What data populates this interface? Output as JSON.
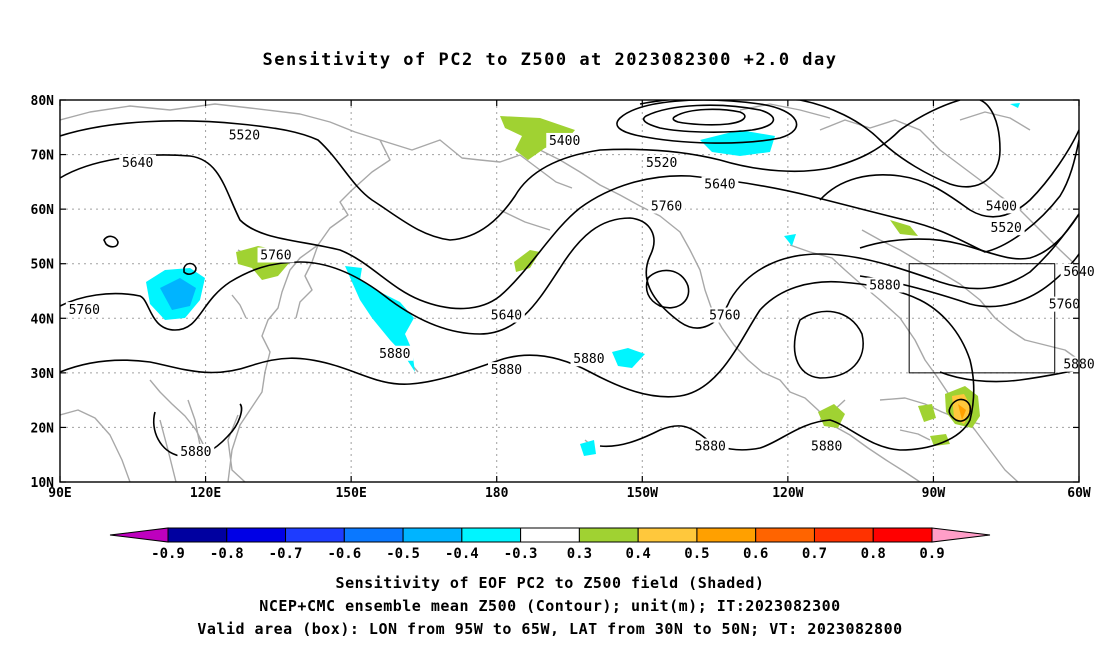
{
  "title": "Sensitivity of PC2 to Z500 at 2023082300 +2.0 day",
  "map": {
    "lon_range_deg_east": [
      90,
      300
    ],
    "lat_range_deg": [
      10,
      80
    ],
    "lat_ticks": [
      {
        "lat": 80,
        "label": "80N"
      },
      {
        "lat": 70,
        "label": "70N"
      },
      {
        "lat": 60,
        "label": "60N"
      },
      {
        "lat": 50,
        "label": "50N"
      },
      {
        "lat": 40,
        "label": "40N"
      },
      {
        "lat": 30,
        "label": "30N"
      },
      {
        "lat": 20,
        "label": "20N"
      },
      {
        "lat": 10,
        "label": "10N"
      }
    ],
    "lon_ticks": [
      {
        "lon": 90,
        "label": "90E"
      },
      {
        "lon": 120,
        "label": "120E"
      },
      {
        "lon": 150,
        "label": "150E"
      },
      {
        "lon": 180,
        "label": "180"
      },
      {
        "lon": 210,
        "label": "150W"
      },
      {
        "lon": 240,
        "label": "120W"
      },
      {
        "lon": 270,
        "label": "90W"
      },
      {
        "lon": 300,
        "label": "60W"
      }
    ],
    "grid_lons": [
      120,
      150,
      180,
      210,
      240,
      270,
      300
    ],
    "grid_lats": [
      20,
      30,
      40,
      50,
      60,
      70
    ],
    "valid_box": {
      "lon_west": 265,
      "lon_east": 295,
      "lat_south": 30,
      "lat_north": 50
    },
    "contour_labels": [
      {
        "text": "5520",
        "lon": 128,
        "lat": 73.5
      },
      {
        "text": "5640",
        "lon": 106,
        "lat": 68.5
      },
      {
        "text": "5400",
        "lon": 194,
        "lat": 72.5
      },
      {
        "text": "5520",
        "lon": 214,
        "lat": 68.5
      },
      {
        "text": "5640",
        "lon": 226,
        "lat": 64.5
      },
      {
        "text": "5760",
        "lon": 215,
        "lat": 60.5
      },
      {
        "text": "5400",
        "lon": 284,
        "lat": 60.5
      },
      {
        "text": "5520",
        "lon": 285,
        "lat": 56.5
      },
      {
        "text": "5640",
        "lon": 300,
        "lat": 48.5
      },
      {
        "text": "5760",
        "lon": 134.5,
        "lat": 51.5
      },
      {
        "text": "5760",
        "lon": 95,
        "lat": 41.5
      },
      {
        "text": "5640",
        "lon": 182,
        "lat": 40.5
      },
      {
        "text": "5760",
        "lon": 227,
        "lat": 40.5
      },
      {
        "text": "5880",
        "lon": 260,
        "lat": 46
      },
      {
        "text": "5760",
        "lon": 297,
        "lat": 42.5
      },
      {
        "text": "5880",
        "lon": 159,
        "lat": 33.5
      },
      {
        "text": "5880",
        "lon": 182,
        "lat": 30.5
      },
      {
        "text": "5880",
        "lon": 199,
        "lat": 32.5
      },
      {
        "text": "5880",
        "lon": 300,
        "lat": 31.5
      },
      {
        "text": "5880",
        "lon": 224,
        "lat": 16.5
      },
      {
        "text": "5880",
        "lon": 248,
        "lat": 16.5
      },
      {
        "text": "5880",
        "lon": 118,
        "lat": 15.5
      }
    ]
  },
  "colorbar": {
    "labels": [
      "-0.9",
      "-0.8",
      "-0.7",
      "-0.6",
      "-0.5",
      "-0.4",
      "-0.3",
      "0.3",
      "0.4",
      "0.5",
      "0.6",
      "0.7",
      "0.8",
      "0.9"
    ],
    "colors": [
      "#be00be",
      "#0000a0",
      "#0000e6",
      "#1e3cff",
      "#0a78ff",
      "#00b4ff",
      "#00f5ff",
      "#ffffff",
      "#a0d232",
      "#ffc83c",
      "#ffa000",
      "#ff6400",
      "#ff3200",
      "#ff0000",
      "#ff9ec8"
    ]
  },
  "captions": {
    "line1": "Sensitivity of EOF PC2 to Z500 field (Shaded)",
    "line2": "NCEP+CMC ensemble mean Z500 (Contour); unit(m); IT:2023082300",
    "line3": "Valid area (box): LON from 95W to 65W, LAT from 30N to 50N; VT: 2023082800"
  }
}
